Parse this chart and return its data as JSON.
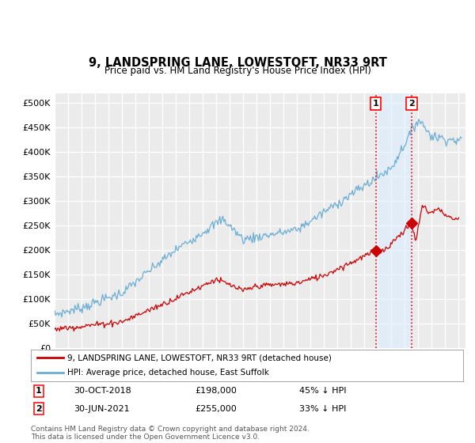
{
  "title": "9, LANDSPRING LANE, LOWESTOFT, NR33 9RT",
  "subtitle": "Price paid vs. HM Land Registry's House Price Index (HPI)",
  "yticks": [
    0,
    50000,
    100000,
    150000,
    200000,
    250000,
    300000,
    350000,
    400000,
    450000,
    500000
  ],
  "ytick_labels": [
    "£0",
    "£50K",
    "£100K",
    "£150K",
    "£200K",
    "£250K",
    "£300K",
    "£350K",
    "£400K",
    "£450K",
    "£500K"
  ],
  "xlim_start": 1995.0,
  "xlim_end": 2025.5,
  "ylim": [
    0,
    520000
  ],
  "hpi_color": "#6BAED6",
  "price_color": "#CC0000",
  "sale1_x": 2018.83,
  "sale1_y": 198000,
  "sale2_x": 2021.5,
  "sale2_y": 255000,
  "sale1_date": "30-OCT-2018",
  "sale1_price": "£198,000",
  "sale1_note": "45% ↓ HPI",
  "sale2_date": "30-JUN-2021",
  "sale2_price": "£255,000",
  "sale2_note": "33% ↓ HPI",
  "legend1": "9, LANDSPRING LANE, LOWESTOFT, NR33 9RT (detached house)",
  "legend2": "HPI: Average price, detached house, East Suffolk",
  "footer": "Contains HM Land Registry data © Crown copyright and database right 2024.\nThis data is licensed under the Open Government Licence v3.0.",
  "background_color": "#FFFFFF",
  "plot_bg_color": "#EBEBEB",
  "grid_color": "#FFFFFF",
  "shade_color": "#DDEEFF",
  "shade_alpha": 0.6
}
